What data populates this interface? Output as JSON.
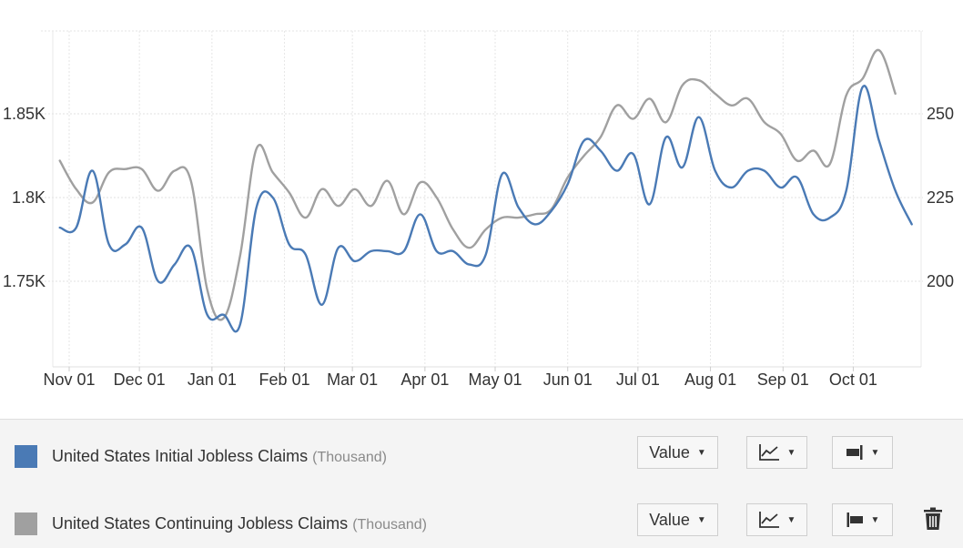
{
  "chart_data": {
    "type": "line",
    "x_ticks": [
      "Nov 01",
      "Dec 01",
      "Jan 01",
      "Feb 01",
      "Mar 01",
      "Apr 01",
      "May 01",
      "Jun 01",
      "Jul 01",
      "Aug 01",
      "Sep 01",
      "Oct 01"
    ],
    "y_left": {
      "ticks": [
        "1.75K",
        "1.8K",
        "1.85K"
      ],
      "tick_values": [
        1750,
        1800,
        1850
      ],
      "range": [
        1700,
        1900
      ]
    },
    "y_right": {
      "ticks": [
        "200",
        "225",
        "250"
      ],
      "tick_values": [
        200,
        225,
        250
      ],
      "range": [
        175,
        275
      ]
    },
    "grid": true,
    "series": [
      {
        "name": "United States Initial Jobless Claims",
        "axis": "right",
        "color": "#4a7ab5",
        "points": [
          [
            "2023-10-28",
            216
          ],
          [
            "2023-11-04",
            216
          ],
          [
            "2023-11-11",
            233
          ],
          [
            "2023-11-18",
            211
          ],
          [
            "2023-11-25",
            211
          ],
          [
            "2023-12-02",
            216
          ],
          [
            "2023-12-09",
            200
          ],
          [
            "2023-12-16",
            205
          ],
          [
            "2023-12-23",
            210
          ],
          [
            "2023-12-30",
            190
          ],
          [
            "2024-01-06",
            190
          ],
          [
            "2024-01-13",
            187
          ],
          [
            "2024-01-20",
            222
          ],
          [
            "2024-01-27",
            225
          ],
          [
            "2024-02-03",
            211
          ],
          [
            "2024-02-10",
            208
          ],
          [
            "2024-02-17",
            193
          ],
          [
            "2024-02-24",
            210
          ],
          [
            "2024-03-02",
            206
          ],
          [
            "2024-03-09",
            209
          ],
          [
            "2024-03-16",
            209
          ],
          [
            "2024-03-23",
            209
          ],
          [
            "2024-03-30",
            220
          ],
          [
            "2024-04-06",
            209
          ],
          [
            "2024-04-13",
            209
          ],
          [
            "2024-04-20",
            205
          ],
          [
            "2024-04-27",
            208
          ],
          [
            "2024-05-04",
            232
          ],
          [
            "2024-05-11",
            222
          ],
          [
            "2024-05-18",
            217
          ],
          [
            "2024-05-25",
            221
          ],
          [
            "2024-06-01",
            229
          ],
          [
            "2024-06-08",
            242
          ],
          [
            "2024-06-15",
            239
          ],
          [
            "2024-06-22",
            233
          ],
          [
            "2024-06-29",
            238
          ],
          [
            "2024-07-06",
            223
          ],
          [
            "2024-07-13",
            243
          ],
          [
            "2024-07-20",
            234
          ],
          [
            "2024-07-27",
            249
          ],
          [
            "2024-08-03",
            233
          ],
          [
            "2024-08-10",
            228
          ],
          [
            "2024-08-17",
            233
          ],
          [
            "2024-08-24",
            233
          ],
          [
            "2024-08-31",
            228
          ],
          [
            "2024-09-07",
            231
          ],
          [
            "2024-09-14",
            220
          ],
          [
            "2024-09-21",
            219
          ],
          [
            "2024-09-28",
            227
          ],
          [
            "2024-10-05",
            258
          ],
          [
            "2024-10-12",
            242
          ],
          [
            "2024-10-19",
            227
          ],
          [
            "2024-10-26",
            217
          ]
        ]
      },
      {
        "name": "United States Continuing Jobless Claims",
        "axis": "left",
        "color": "#a0a0a0",
        "points": [
          [
            "2023-10-28",
            1822
          ],
          [
            "2023-11-04",
            1805
          ],
          [
            "2023-11-11",
            1797
          ],
          [
            "2023-11-18",
            1815
          ],
          [
            "2023-11-25",
            1817
          ],
          [
            "2023-12-02",
            1817
          ],
          [
            "2023-12-09",
            1804
          ],
          [
            "2023-12-16",
            1816
          ],
          [
            "2023-12-23",
            1810
          ],
          [
            "2023-12-30",
            1745
          ],
          [
            "2024-01-06",
            1728
          ],
          [
            "2024-01-13",
            1765
          ],
          [
            "2024-01-20",
            1829
          ],
          [
            "2024-01-27",
            1815
          ],
          [
            "2024-02-03",
            1803
          ],
          [
            "2024-02-10",
            1788
          ],
          [
            "2024-02-17",
            1805
          ],
          [
            "2024-02-24",
            1795
          ],
          [
            "2024-03-02",
            1805
          ],
          [
            "2024-03-09",
            1795
          ],
          [
            "2024-03-16",
            1810
          ],
          [
            "2024-03-23",
            1790
          ],
          [
            "2024-03-30",
            1809
          ],
          [
            "2024-04-06",
            1800
          ],
          [
            "2024-04-13",
            1781
          ],
          [
            "2024-04-20",
            1770
          ],
          [
            "2024-04-27",
            1781
          ],
          [
            "2024-05-04",
            1788
          ],
          [
            "2024-05-11",
            1788
          ],
          [
            "2024-05-18",
            1790
          ],
          [
            "2024-05-25",
            1793
          ],
          [
            "2024-06-01",
            1812
          ],
          [
            "2024-06-08",
            1825
          ],
          [
            "2024-06-15",
            1836
          ],
          [
            "2024-06-22",
            1855
          ],
          [
            "2024-06-29",
            1847
          ],
          [
            "2024-07-06",
            1859
          ],
          [
            "2024-07-13",
            1845
          ],
          [
            "2024-07-20",
            1867
          ],
          [
            "2024-07-27",
            1870
          ],
          [
            "2024-08-03",
            1862
          ],
          [
            "2024-08-10",
            1855
          ],
          [
            "2024-08-17",
            1859
          ],
          [
            "2024-08-24",
            1845
          ],
          [
            "2024-08-31",
            1838
          ],
          [
            "2024-09-07",
            1822
          ],
          [
            "2024-09-14",
            1828
          ],
          [
            "2024-09-21",
            1820
          ],
          [
            "2024-09-28",
            1861
          ],
          [
            "2024-10-05",
            1871
          ],
          [
            "2024-10-12",
            1888
          ],
          [
            "2024-10-19",
            1862
          ]
        ]
      }
    ]
  },
  "legend": {
    "items": [
      {
        "swatch_color": "#4a7ab5",
        "label": "United States Initial Jobless Claims",
        "unit": "(Thousand)",
        "value_button": "Value",
        "chart_type_icon": "line-chart-icon",
        "axis_icon": "axis-right-icon"
      },
      {
        "swatch_color": "#a0a0a0",
        "label": "United States Continuing Jobless Claims",
        "unit": "(Thousand)",
        "value_button": "Value",
        "chart_type_icon": "line-chart-icon",
        "axis_icon": "axis-left-icon",
        "delete_icon": "trash-icon"
      }
    ],
    "caret": "▼"
  }
}
